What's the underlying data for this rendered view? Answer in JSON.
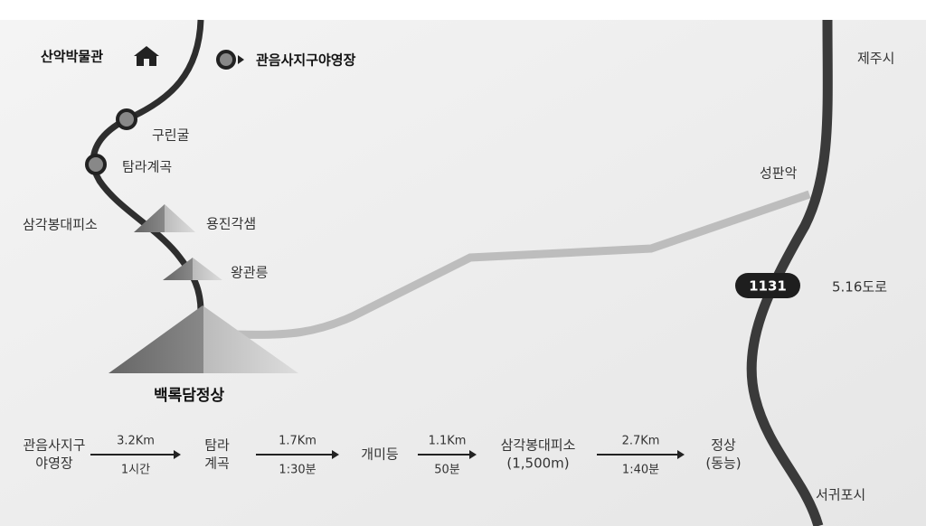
{
  "map": {
    "places": {
      "museum": "산악박물관",
      "campground": "관음사지구야영장",
      "gurin_cave": "구린굴",
      "tamna_valley": "탐라계곡",
      "samgakbong_shelter": "삼각봉대피소",
      "yongjingak_spring": "용진각샘",
      "wanggwanreung": "왕관릉",
      "baengnokdam_summit": "백록담정상",
      "seongpanak": "성판악",
      "jeju_city": "제주시",
      "seogwipo_city": "서귀포시"
    },
    "road": {
      "number": "1131",
      "name": "5.16도로"
    }
  },
  "route": {
    "steps": [
      {
        "lines": [
          "관음사지구",
          "야영장"
        ]
      },
      {
        "lines": [
          "탐라",
          "계곡"
        ]
      },
      {
        "lines": [
          "개미등"
        ]
      },
      {
        "lines": [
          "삼각봉대피소",
          "(1,500m)"
        ]
      },
      {
        "lines": [
          "정상",
          "(동능)"
        ]
      }
    ],
    "legs": [
      {
        "distance": "3.2Km",
        "time": "1시간"
      },
      {
        "distance": "1.7Km",
        "time": "1:30분"
      },
      {
        "distance": "1.1Km",
        "time": "50분"
      },
      {
        "distance": "2.7Km",
        "time": "1:40분"
      }
    ]
  }
}
